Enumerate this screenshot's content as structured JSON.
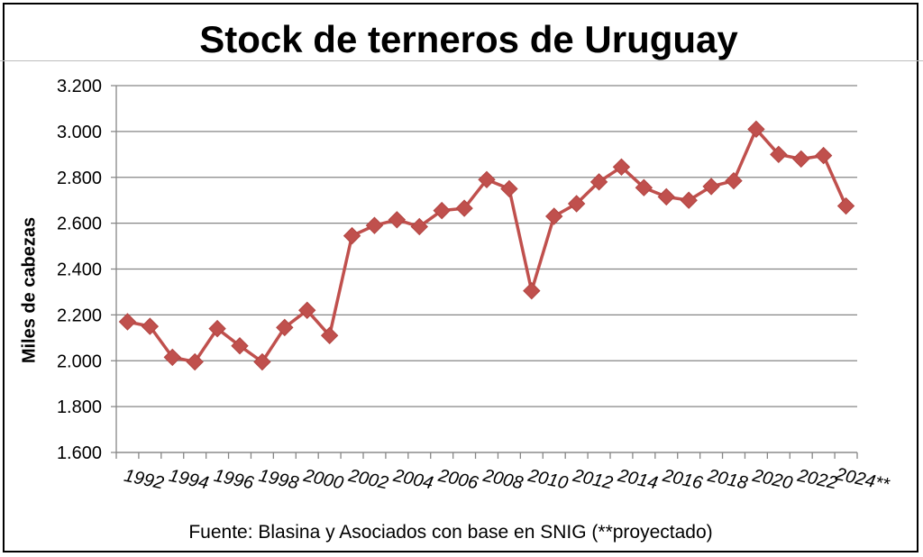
{
  "chart_data": {
    "type": "line",
    "title": "Stock de terneros de Uruguay",
    "ylabel": "Miles de cabezas",
    "xlabel": "",
    "source": "Fuente: Blasina y Asociados con base en SNIG (**proyectado)",
    "ylim": [
      1600,
      3200
    ],
    "yticks": [
      "1.600",
      "1.800",
      "2.000",
      "2.200",
      "2.400",
      "2.600",
      "2.800",
      "3.000",
      "3.200"
    ],
    "ytick_values": [
      1600,
      1800,
      2000,
      2200,
      2400,
      2600,
      2800,
      3000,
      3200
    ],
    "xtick_labels": [
      "1992",
      "1994",
      "1996",
      "1998",
      "2000",
      "2002",
      "2004",
      "2006",
      "2008",
      "2010",
      "2012",
      "2014",
      "2016",
      "2018",
      "2020",
      "2022",
      "2024**"
    ],
    "x": [
      1991,
      1992,
      1993,
      1994,
      1995,
      1996,
      1997,
      1998,
      1999,
      2000,
      2001,
      2002,
      2003,
      2004,
      2005,
      2006,
      2007,
      2008,
      2009,
      2010,
      2011,
      2012,
      2013,
      2014,
      2015,
      2016,
      2017,
      2018,
      2019,
      2020,
      2021,
      2022,
      2023
    ],
    "series": [
      {
        "values": [
          2170,
          2150,
          2015,
          1995,
          2140,
          2065,
          1995,
          2145,
          2220,
          2110,
          2545,
          2590,
          2615,
          2585,
          2655,
          2665,
          2790,
          2750,
          2305,
          2630,
          2685,
          2780,
          2845,
          2755,
          2715,
          2700,
          2760,
          2785,
          3010,
          2900,
          2880,
          2895,
          2675
        ]
      }
    ],
    "grid": true,
    "colors": {
      "line": "#c0504d",
      "marker": "#c0504d",
      "grid": "#868686",
      "axis": "#868686"
    }
  }
}
